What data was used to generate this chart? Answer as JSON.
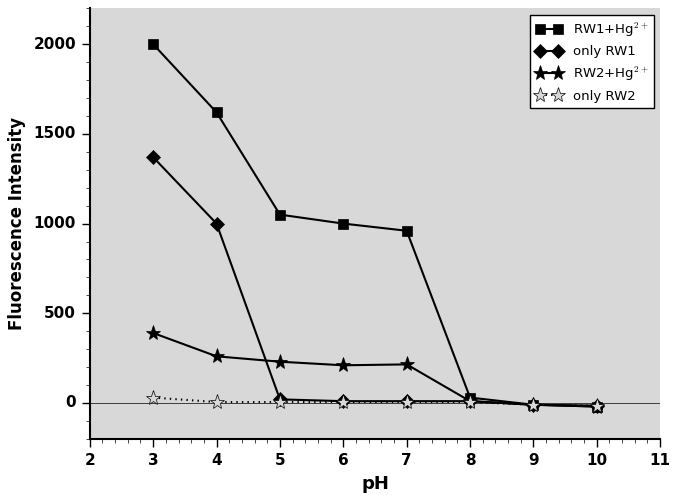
{
  "pH": [
    3,
    4,
    5,
    6,
    7,
    8,
    9,
    10
  ],
  "RW1_Hg": [
    2000,
    1620,
    1050,
    1000,
    960,
    30,
    -10,
    -20
  ],
  "only_RW1": [
    1370,
    1000,
    20,
    10,
    10,
    10,
    -10,
    -15
  ],
  "RW2_Hg": [
    390,
    260,
    230,
    210,
    215,
    10,
    -10,
    -20
  ],
  "only_RW2": [
    30,
    5,
    5,
    5,
    5,
    5,
    -10,
    -15
  ],
  "xlabel": "pH",
  "ylabel": "Fluorescence Intensity",
  "xlim": [
    2,
    11
  ],
  "ylim": [
    -200,
    2200
  ],
  "yticks": [
    0,
    500,
    1000,
    1500,
    2000
  ],
  "xticks": [
    2,
    3,
    4,
    5,
    6,
    7,
    8,
    9,
    10,
    11
  ],
  "legend_labels": [
    "RW1+Hg$^{2+}$",
    "only RW1",
    "RW2+Hg$^{2+}$",
    "only RW2"
  ],
  "color": "black",
  "bg_color": "#d8d8d8",
  "figsize": [
    6.79,
    5.01
  ],
  "dpi": 100
}
